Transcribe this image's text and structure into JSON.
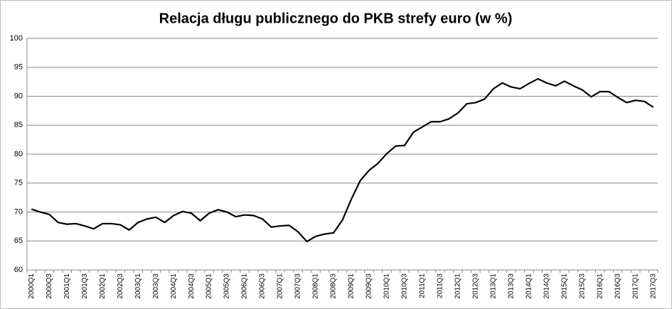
{
  "chart_data": {
    "type": "line",
    "title": "Relacja długu publicznego do PKB strefy euro (w %)",
    "categories": [
      "2000Q1",
      null,
      "2000Q3",
      null,
      "2001Q1",
      null,
      "2001Q3",
      null,
      "2002Q1",
      null,
      "2002Q3",
      null,
      "2003Q1",
      null,
      "2003Q3",
      null,
      "2004Q1",
      null,
      "2004Q3",
      null,
      "2005Q1",
      null,
      "2005Q3",
      null,
      "2006Q1",
      null,
      "2006Q3",
      null,
      "2007Q1",
      null,
      "2007Q3",
      null,
      "2008Q1",
      null,
      "2008Q3",
      null,
      "2009Q1",
      null,
      "2009Q3",
      null,
      "2010Q1",
      null,
      "2010Q3",
      null,
      "2011Q1",
      null,
      "2011Q3",
      null,
      "2012Q1",
      null,
      "2012Q3",
      null,
      "2013Q1",
      null,
      "2013Q3",
      null,
      "2014Q1",
      null,
      "2014Q3",
      null,
      "2015Q1",
      null,
      "2015Q3",
      null,
      "2016Q1",
      null,
      "2016Q3",
      null,
      "2017Q1",
      null,
      "2017Q3"
    ],
    "values": [
      70.5,
      70.0,
      69.6,
      68.2,
      67.9,
      68.0,
      67.6,
      67.1,
      68.0,
      68.0,
      67.8,
      66.9,
      68.2,
      68.8,
      69.1,
      68.2,
      69.4,
      70.1,
      69.8,
      68.5,
      69.8,
      70.4,
      70.0,
      69.2,
      69.5,
      69.4,
      68.8,
      67.4,
      67.6,
      67.7,
      66.6,
      64.9,
      65.8,
      66.2,
      66.4,
      68.6,
      72.2,
      75.4,
      77.2,
      78.4,
      80.1,
      81.4,
      81.5,
      83.8,
      84.7,
      85.6,
      85.6,
      86.1,
      87.1,
      88.7,
      88.9,
      89.5,
      91.3,
      92.3,
      91.6,
      91.3,
      92.2,
      93.0,
      92.3,
      91.8,
      92.6,
      91.8,
      91.1,
      89.9,
      90.8,
      90.8,
      89.8,
      88.9,
      89.3,
      89.1,
      88.1
    ],
    "color": "#000000",
    "ylim": [
      60,
      100
    ],
    "yticks": [
      60,
      65,
      70,
      75,
      80,
      85,
      90,
      95,
      100
    ],
    "grid": true
  }
}
